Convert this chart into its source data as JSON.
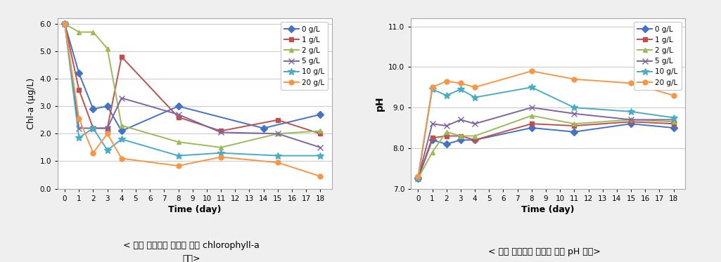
{
  "time_points": [
    0,
    1,
    2,
    3,
    4,
    5,
    6,
    7,
    8,
    9,
    10,
    11,
    12,
    13,
    14,
    15,
    16,
    17,
    18
  ],
  "chl_a": {
    "0 g/L": [
      6.0,
      4.2,
      2.9,
      3.0,
      2.1,
      null,
      null,
      null,
      3.0,
      null,
      null,
      null,
      null,
      null,
      2.2,
      null,
      null,
      null,
      2.7
    ],
    "1 g/L": [
      6.0,
      3.6,
      2.2,
      2.2,
      4.8,
      null,
      null,
      null,
      2.6,
      null,
      null,
      2.1,
      null,
      null,
      null,
      2.5,
      null,
      null,
      2.0
    ],
    "2 g/L": [
      6.0,
      5.7,
      5.7,
      5.1,
      2.3,
      null,
      null,
      null,
      1.7,
      null,
      null,
      1.5,
      null,
      null,
      null,
      2.0,
      null,
      null,
      2.1
    ],
    "5 g/L": [
      6.0,
      2.2,
      2.2,
      2.2,
      3.3,
      null,
      null,
      null,
      2.7,
      null,
      null,
      2.05,
      null,
      null,
      null,
      2.0,
      null,
      null,
      1.5
    ],
    "10 g/L": [
      6.0,
      1.85,
      2.2,
      1.4,
      1.8,
      null,
      null,
      null,
      1.2,
      null,
      null,
      1.3,
      null,
      null,
      null,
      1.2,
      null,
      null,
      1.2
    ],
    "20 g/L": [
      6.0,
      2.55,
      1.3,
      2.0,
      1.1,
      null,
      null,
      null,
      0.83,
      null,
      null,
      1.15,
      null,
      null,
      null,
      0.95,
      null,
      null,
      0.45
    ]
  },
  "ph": {
    "0 g/L": [
      7.25,
      8.2,
      8.1,
      8.2,
      8.2,
      null,
      null,
      null,
      8.5,
      null,
      null,
      8.4,
      null,
      null,
      null,
      8.6,
      null,
      null,
      8.5
    ],
    "1 g/L": [
      7.25,
      8.25,
      8.3,
      8.3,
      8.2,
      null,
      null,
      null,
      8.6,
      null,
      null,
      8.55,
      null,
      null,
      null,
      8.65,
      null,
      null,
      8.6
    ],
    "2 g/L": [
      7.25,
      7.9,
      8.4,
      8.3,
      8.3,
      null,
      null,
      null,
      8.8,
      null,
      null,
      8.6,
      null,
      null,
      null,
      8.7,
      null,
      null,
      8.65
    ],
    "5 g/L": [
      7.25,
      8.6,
      8.55,
      8.7,
      8.6,
      null,
      null,
      null,
      9.0,
      null,
      null,
      8.85,
      null,
      null,
      null,
      8.7,
      null,
      null,
      8.7
    ],
    "10 g/L": [
      7.25,
      9.45,
      9.3,
      9.45,
      9.25,
      null,
      null,
      null,
      9.5,
      null,
      null,
      9.0,
      null,
      null,
      null,
      8.9,
      null,
      null,
      8.75
    ],
    "20 g/L": [
      7.3,
      9.5,
      9.65,
      9.6,
      9.5,
      null,
      null,
      null,
      9.9,
      null,
      null,
      9.7,
      null,
      null,
      null,
      9.6,
      null,
      null,
      9.3
    ]
  },
  "series_colors": {
    "0 g/L": "#4472C4",
    "1 g/L": "#C0504D",
    "2 g/L": "#9BBB59",
    "5 g/L": "#8064A2",
    "10 g/L": "#4BACC6",
    "20 g/L": "#F79646"
  },
  "series_markers": {
    "0 g/L": "D",
    "1 g/L": "s",
    "2 g/L": "^",
    "5 g/L": "x",
    "10 g/L": "*",
    "20 g/L": "o"
  },
  "chl_ylim": [
    0.0,
    6.2
  ],
  "chl_yticks": [
    0.0,
    1.0,
    2.0,
    3.0,
    4.0,
    5.0,
    6.0
  ],
  "ph_ylim": [
    7.0,
    11.2
  ],
  "ph_yticks": [
    7.0,
    8.0,
    9.0,
    10.0,
    11.0
  ],
  "xticks": [
    0,
    1,
    2,
    3,
    4,
    5,
    6,
    7,
    8,
    9,
    10,
    11,
    12,
    13,
    14,
    15,
    16,
    17,
    18
  ],
  "xlabel": "Time (day)",
  "chl_ylabel": "Chl-a (μg/L)",
  "ph_ylabel": "pH",
  "chl_caption_line1": "< 소재 투입량과 시간에 따른 chlorophyll-a",
  "chl_caption_line2": "변화>",
  "ph_caption": "< 소재 투입량과 시간에 따른 pH 변화>",
  "bg_color": "#EFEFEF",
  "plot_bg_color": "#FFFFFF",
  "border_color": "#AAAAAA",
  "legend_order": [
    "0 g/L",
    "1 g/L",
    "2 g/L",
    "5 g/L",
    "10 g/L",
    "20 g/L"
  ]
}
